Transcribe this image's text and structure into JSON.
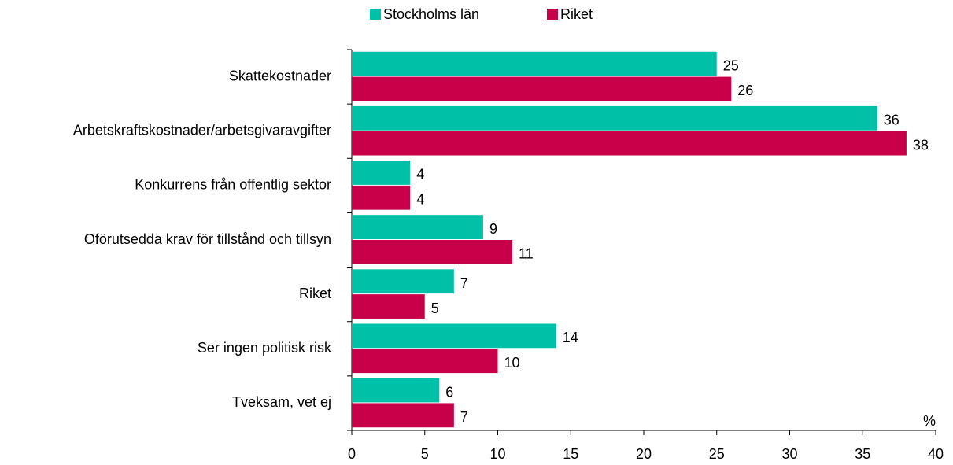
{
  "chart_data": {
    "type": "bar",
    "orientation": "horizontal",
    "categories": [
      "Skattekostnader",
      "Arbetskraftskostnader/arbetsgivaravgifter",
      "Konkurrens från offentlig sektor",
      "Oförutsedda krav för tillstånd och tillsyn",
      "Riket",
      "Ser ingen politisk risk",
      "Tveksam, vet ej"
    ],
    "series": [
      {
        "name": "Stockholms län",
        "color": "#00c0a8",
        "values": [
          25,
          36,
          4,
          9,
          7,
          14,
          6
        ]
      },
      {
        "name": "Riket",
        "color": "#c8004a",
        "values": [
          26,
          38,
          4,
          11,
          5,
          10,
          7
        ]
      }
    ],
    "x_label": "%",
    "xlim": [
      0,
      40
    ],
    "xticks": [
      0,
      5,
      10,
      15,
      20,
      25,
      30,
      35,
      40
    ],
    "legend": "top",
    "grid": false
  }
}
